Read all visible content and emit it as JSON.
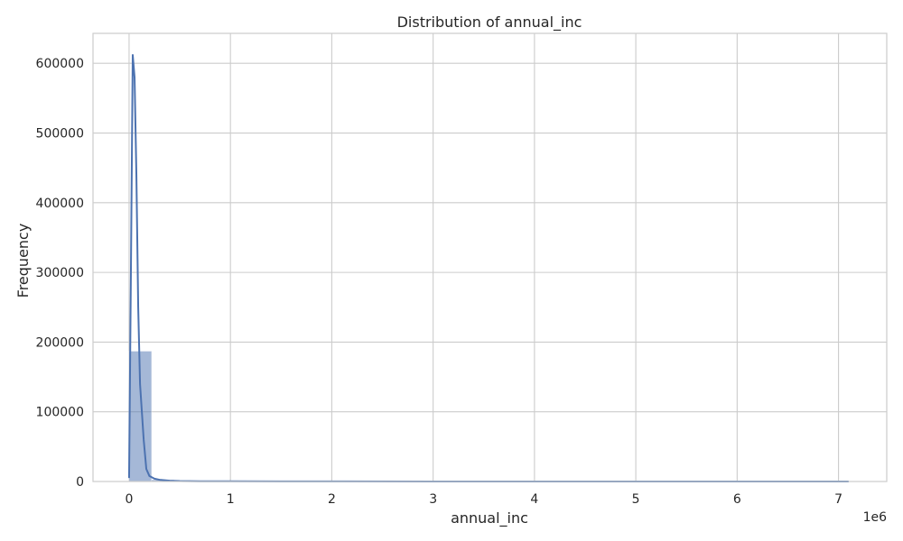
{
  "chart_data": {
    "type": "histogram",
    "title": "Distribution of annual_inc",
    "xlabel": "annual_inc",
    "ylabel": "Frequency",
    "x_offset_text": "1e6",
    "xlim": [
      -0.356,
      7.476
    ],
    "ylim": [
      0,
      643000
    ],
    "x_ticks": [
      0,
      1,
      2,
      3,
      4,
      5,
      6,
      7
    ],
    "x_tick_labels": [
      "0",
      "1",
      "2",
      "3",
      "4",
      "5",
      "6",
      "7"
    ],
    "y_ticks": [
      0,
      100000,
      200000,
      300000,
      400000,
      500000,
      600000
    ],
    "y_tick_labels": [
      "0",
      "100000",
      "200000",
      "300000",
      "400000",
      "500000",
      "600000"
    ],
    "grid": true,
    "series": [
      {
        "kind": "bars",
        "color": "#4c72b0",
        "bin_edges": [
          0,
          0.2222,
          0.4444,
          0.6667,
          0.8889,
          1.1111,
          1.3333,
          1.5556,
          1.7778,
          2.0,
          2.2222,
          2.4444,
          2.6667,
          2.8889,
          3.1111,
          3.3333,
          3.5556,
          3.7778,
          4.0,
          4.2222,
          4.4444,
          4.6667,
          4.8889,
          5.1111,
          5.3333,
          5.5556,
          5.7778,
          6.0,
          6.2222,
          6.4444,
          6.6667,
          6.8889,
          7.1111
        ],
        "values": [
          187000,
          2500,
          500,
          150,
          80,
          50,
          30,
          20,
          15,
          10,
          8,
          6,
          5,
          4,
          3,
          3,
          2,
          2,
          2,
          1,
          1,
          1,
          1,
          1,
          1,
          1,
          1,
          1,
          1,
          1,
          1,
          1
        ]
      },
      {
        "kind": "kde",
        "color": "#4c72b0",
        "x": [
          0.0,
          0.018,
          0.036,
          0.054,
          0.072,
          0.09,
          0.108,
          0.126,
          0.144,
          0.17,
          0.2,
          0.25,
          0.3,
          0.35,
          0.4,
          0.5,
          0.7,
          1.0,
          1.5,
          2.0,
          3.0,
          4.0,
          5.0,
          6.0,
          7.1
        ],
        "values": [
          5000,
          300000,
          612000,
          580000,
          440000,
          250000,
          140000,
          100000,
          60000,
          18000,
          8000,
          4000,
          2500,
          1800,
          1200,
          700,
          400,
          250,
          150,
          100,
          60,
          40,
          30,
          20,
          10
        ]
      }
    ]
  }
}
